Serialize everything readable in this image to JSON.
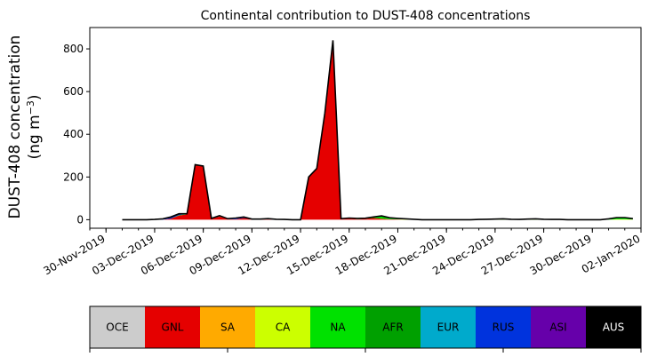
{
  "chart_data": {
    "type": "area",
    "title": "Continental contribution to DUST-408 concentrations",
    "ylabel_line1": "DUST-408 concentration",
    "ylabel_line2_prefix": "(ng m",
    "ylabel_line2_sup": "−3",
    "ylabel_line2_suffix": ")",
    "xlim": [
      "2019-11-29",
      "2020-01-02"
    ],
    "ylim": [
      -40,
      900
    ],
    "yticks": [
      0,
      200,
      400,
      600,
      800
    ],
    "xticks": [
      {
        "date": "2019-11-30",
        "label": "30-Nov-2019"
      },
      {
        "date": "2019-12-03",
        "label": "03-Dec-2019"
      },
      {
        "date": "2019-12-06",
        "label": "06-Dec-2019"
      },
      {
        "date": "2019-12-09",
        "label": "09-Dec-2019"
      },
      {
        "date": "2019-12-12",
        "label": "12-Dec-2019"
      },
      {
        "date": "2019-12-15",
        "label": "15-Dec-2019"
      },
      {
        "date": "2019-12-18",
        "label": "18-Dec-2019"
      },
      {
        "date": "2019-12-21",
        "label": "21-Dec-2019"
      },
      {
        "date": "2019-12-24",
        "label": "24-Dec-2019"
      },
      {
        "date": "2019-12-27",
        "label": "27-Dec-2019"
      },
      {
        "date": "2019-12-30",
        "label": "30-Dec-2019"
      },
      {
        "date": "2020-01-02",
        "label": "02-Jan-2020"
      }
    ],
    "x": [
      "2019-12-01T00:00",
      "2019-12-01T12:00",
      "2019-12-02T00:00",
      "2019-12-02T12:00",
      "2019-12-03T00:00",
      "2019-12-03T12:00",
      "2019-12-04T00:00",
      "2019-12-04T12:00",
      "2019-12-05T00:00",
      "2019-12-05T12:00",
      "2019-12-06T00:00",
      "2019-12-06T12:00",
      "2019-12-07T00:00",
      "2019-12-07T12:00",
      "2019-12-08T00:00",
      "2019-12-08T12:00",
      "2019-12-09T00:00",
      "2019-12-09T12:00",
      "2019-12-10T00:00",
      "2019-12-10T12:00",
      "2019-12-11T00:00",
      "2019-12-11T12:00",
      "2019-12-12T00:00",
      "2019-12-12T12:00",
      "2019-12-13T00:00",
      "2019-12-13T12:00",
      "2019-12-14T00:00",
      "2019-12-14T12:00",
      "2019-12-15T00:00",
      "2019-12-15T12:00",
      "2019-12-16T00:00",
      "2019-12-16T12:00",
      "2019-12-17T00:00",
      "2019-12-17T12:00",
      "2019-12-18T00:00",
      "2019-12-18T12:00",
      "2019-12-19T00:00",
      "2019-12-19T12:00",
      "2019-12-20T00:00",
      "2019-12-20T12:00",
      "2019-12-21T00:00",
      "2019-12-21T12:00",
      "2019-12-22T00:00",
      "2019-12-22T12:00",
      "2019-12-23T00:00",
      "2019-12-23T12:00",
      "2019-12-24T00:00",
      "2019-12-24T12:00",
      "2019-12-25T00:00",
      "2019-12-25T12:00",
      "2019-12-26T00:00",
      "2019-12-26T12:00",
      "2019-12-27T00:00",
      "2019-12-27T12:00",
      "2019-12-28T00:00",
      "2019-12-28T12:00",
      "2019-12-29T00:00",
      "2019-12-29T12:00",
      "2019-12-30T00:00",
      "2019-12-30T12:00",
      "2019-12-31T00:00",
      "2019-12-31T12:00",
      "2020-01-01T00:00",
      "2020-01-01T12:00"
    ],
    "series": [
      {
        "name": "OCE",
        "color": "#cccccc",
        "values": [
          0,
          0,
          0,
          0,
          0,
          0,
          0,
          0,
          0,
          0,
          0,
          0,
          0,
          0,
          0,
          0,
          0,
          0,
          0,
          0,
          0,
          0,
          0,
          0,
          0,
          0,
          0,
          0,
          0,
          0,
          0,
          0,
          0,
          0,
          0,
          0,
          0,
          0,
          0,
          0,
          0,
          0,
          0,
          0,
          0,
          0,
          0,
          0,
          0,
          0,
          0,
          0,
          0,
          0,
          0,
          0,
          0,
          0,
          0,
          0,
          0,
          0,
          0,
          0
        ]
      },
      {
        "name": "GNL",
        "color": "#e50000",
        "values": [
          0,
          0,
          0,
          0,
          0,
          0,
          5,
          20,
          25,
          258,
          250,
          5,
          15,
          3,
          2,
          8,
          2,
          3,
          2,
          0,
          0,
          0,
          0,
          200,
          240,
          500,
          840,
          5,
          6,
          3,
          4,
          8,
          5,
          2,
          1,
          0,
          0,
          0,
          0,
          0,
          0,
          0,
          0,
          0,
          0,
          0,
          0,
          0,
          0,
          0,
          0,
          0,
          0,
          0,
          0,
          0,
          0,
          0,
          0,
          0,
          0,
          0,
          0,
          0
        ]
      },
      {
        "name": "SA",
        "color": "#ffaa00",
        "values": [
          0,
          0,
          0,
          0,
          0,
          0,
          0,
          0,
          0,
          0,
          0,
          0,
          0,
          0,
          0,
          0,
          0,
          0,
          0,
          0,
          0,
          0,
          0,
          0,
          0,
          0,
          0,
          0,
          0,
          0,
          0,
          0,
          0,
          0,
          0,
          0,
          0,
          0,
          0,
          0,
          0,
          0,
          0,
          0,
          0,
          0,
          0,
          0,
          0,
          0,
          0,
          0,
          0,
          0,
          0,
          0,
          0,
          0,
          0,
          0,
          0,
          0,
          0,
          0
        ]
      },
      {
        "name": "CA",
        "color": "#ccff00",
        "values": [
          0,
          0,
          0,
          0,
          0,
          0,
          0,
          0,
          0,
          0,
          0,
          0,
          0,
          0,
          0,
          0,
          0,
          0,
          0,
          0,
          0,
          0,
          0,
          0,
          0,
          0,
          0,
          0,
          0,
          0,
          0,
          0,
          0,
          0,
          1,
          2,
          1,
          0,
          0,
          0,
          0,
          0,
          0,
          0,
          0,
          0,
          1,
          1,
          0,
          0,
          1,
          1,
          0,
          0,
          0,
          0,
          0,
          0,
          0,
          0,
          0,
          2,
          2,
          1
        ]
      },
      {
        "name": "NA",
        "color": "#00e100",
        "values": [
          0,
          0,
          0,
          0,
          0,
          0,
          0,
          2,
          1,
          0,
          0,
          0,
          1,
          0,
          0,
          0,
          0,
          0,
          0,
          0,
          0,
          0,
          0,
          0,
          0,
          0,
          0,
          0,
          2,
          3,
          3,
          5,
          12,
          6,
          4,
          2,
          1,
          0,
          0,
          0,
          0,
          0,
          0,
          0,
          1,
          2,
          2,
          3,
          2,
          1,
          2,
          3,
          2,
          1,
          1,
          0,
          0,
          0,
          0,
          0,
          4,
          8,
          8,
          4
        ]
      },
      {
        "name": "AFR",
        "color": "#00a000",
        "values": [
          0,
          0,
          0,
          0,
          0,
          0,
          0,
          0,
          0,
          0,
          0,
          0,
          0,
          0,
          0,
          0,
          0,
          0,
          0,
          0,
          0,
          0,
          0,
          0,
          0,
          0,
          0,
          0,
          0,
          0,
          0,
          0,
          1,
          1,
          0,
          0,
          0,
          0,
          0,
          0,
          0,
          0,
          0,
          0,
          0,
          0,
          0,
          0,
          0,
          0,
          0,
          0,
          0,
          0,
          0,
          0,
          0,
          0,
          0,
          0,
          0,
          0,
          0,
          0
        ]
      },
      {
        "name": "EUR",
        "color": "#00aacc",
        "values": [
          0,
          0,
          0,
          0,
          0,
          0,
          0,
          0,
          0,
          0,
          0,
          0,
          0,
          0,
          0,
          0,
          0,
          0,
          0,
          0,
          0,
          0,
          0,
          0,
          0,
          0,
          0,
          0,
          0,
          0,
          0,
          0,
          0,
          0,
          0,
          0,
          0,
          0,
          0,
          0,
          0,
          0,
          0,
          0,
          0,
          0,
          0,
          0,
          0,
          0,
          0,
          0,
          0,
          0,
          0,
          0,
          0,
          0,
          0,
          0,
          0,
          0,
          0,
          0
        ]
      },
      {
        "name": "RUS",
        "color": "#0033dd",
        "values": [
          0,
          0,
          0,
          0,
          1,
          4,
          8,
          6,
          2,
          0,
          1,
          1,
          3,
          2,
          6,
          5,
          1,
          0,
          3,
          2,
          1,
          0,
          0,
          0,
          0,
          0,
          0,
          0,
          0,
          0,
          0,
          0,
          0,
          0,
          0,
          0,
          0,
          0,
          0,
          0,
          0,
          0,
          0,
          0,
          0,
          0,
          0,
          0,
          0,
          0,
          0,
          0,
          0,
          0,
          0,
          0,
          0,
          0,
          0,
          0,
          0,
          0,
          0,
          0
        ]
      },
      {
        "name": "ASI",
        "color": "#6600aa",
        "values": [
          0,
          0,
          0,
          0,
          0,
          0,
          0,
          0,
          0,
          0,
          0,
          0,
          0,
          0,
          0,
          0,
          0,
          0,
          0,
          0,
          0,
          0,
          0,
          0,
          0,
          0,
          0,
          0,
          0,
          0,
          0,
          0,
          0,
          0,
          0,
          0,
          0,
          0,
          0,
          0,
          0,
          0,
          0,
          0,
          0,
          0,
          0,
          0,
          0,
          0,
          0,
          0,
          0,
          0,
          0,
          0,
          0,
          0,
          0,
          0,
          0,
          0,
          0,
          0
        ]
      },
      {
        "name": "AUS",
        "color": "#000000",
        "values": [
          0,
          0,
          0,
          0,
          0,
          0,
          0,
          0,
          0,
          0,
          0,
          0,
          0,
          0,
          0,
          0,
          0,
          0,
          0,
          0,
          0,
          0,
          0,
          0,
          0,
          0,
          0,
          0,
          0,
          0,
          0,
          0,
          0,
          0,
          0,
          0,
          0,
          0,
          0,
          0,
          0,
          0,
          0,
          0,
          0,
          0,
          0,
          0,
          0,
          0,
          0,
          0,
          0,
          0,
          0,
          0,
          0,
          0,
          0,
          0,
          0,
          0,
          0,
          0
        ]
      }
    ],
    "legend": {
      "placement": "bottom",
      "items": [
        {
          "name": "OCE",
          "color": "#cccccc",
          "text_color": "#000000"
        },
        {
          "name": "GNL",
          "color": "#e50000",
          "text_color": "#000000"
        },
        {
          "name": "SA",
          "color": "#ffaa00",
          "text_color": "#000000"
        },
        {
          "name": "CA",
          "color": "#ccff00",
          "text_color": "#000000"
        },
        {
          "name": "NA",
          "color": "#00e100",
          "text_color": "#000000"
        },
        {
          "name": "AFR",
          "color": "#00a000",
          "text_color": "#000000"
        },
        {
          "name": "EUR",
          "color": "#00aacc",
          "text_color": "#000000"
        },
        {
          "name": "RUS",
          "color": "#0033dd",
          "text_color": "#000000"
        },
        {
          "name": "ASI",
          "color": "#6600aa",
          "text_color": "#000000"
        },
        {
          "name": "AUS",
          "color": "#000000",
          "text_color": "#ffffff"
        }
      ]
    },
    "grid": false
  }
}
